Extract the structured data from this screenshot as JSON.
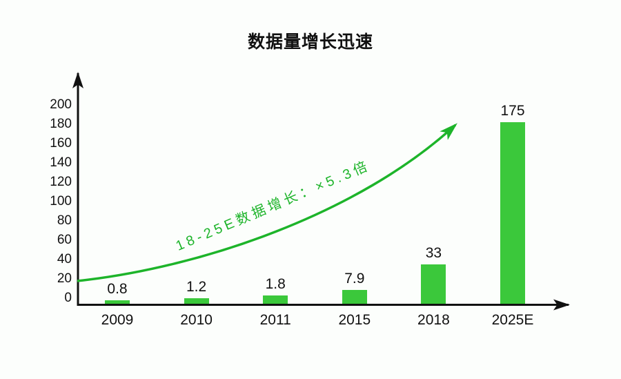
{
  "page": {
    "background": "#FCFEFC"
  },
  "chart_data": {
    "type": "bar",
    "title": "数据量增长迅速",
    "categories": [
      "2009",
      "2010",
      "2011",
      "2015",
      "2018",
      "2025E"
    ],
    "values": [
      0.8,
      1.2,
      1.8,
      7.9,
      33,
      175
    ],
    "value_labels": [
      "0.8",
      "1.2",
      "1.8",
      "7.9",
      "33",
      "175"
    ],
    "xlabel": "",
    "ylabel": "",
    "ylim": [
      0,
      200
    ],
    "y_ticks": [
      0,
      20,
      40,
      60,
      80,
      100,
      120,
      140,
      160,
      180,
      200
    ],
    "grid": false,
    "legend_position": "none",
    "bar_color": "#3BC83B",
    "axis_color": "#111111",
    "text_color": "#111111",
    "annotation": {
      "text": "18-25E数据增长：×5.3倍",
      "color": "#1DB42A",
      "shape": "curved-growth-arrow-up-right"
    }
  }
}
